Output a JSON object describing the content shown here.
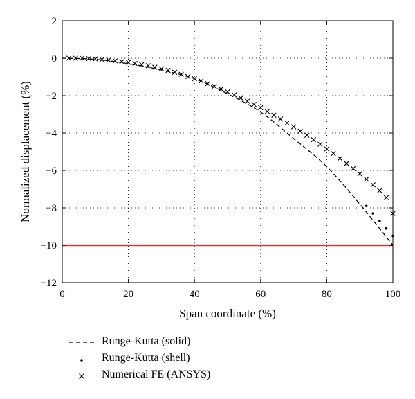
{
  "chart_data": {
    "type": "line",
    "xlabel": "Span coordinate (%)",
    "ylabel": "Normalized displacement (%)",
    "xlim": [
      0,
      100
    ],
    "ylim": [
      -12,
      2
    ],
    "xticks": [
      0,
      20,
      40,
      60,
      80,
      100
    ],
    "yticks": [
      2,
      0,
      -2,
      -4,
      -6,
      -8,
      -10,
      -12
    ],
    "grid": true,
    "grid_style": "dotted",
    "reference_line": {
      "y": -10,
      "color": "#e8312a"
    },
    "legend_position": "below-chart",
    "series": [
      {
        "name": "Runge-Kutta (solid)",
        "style": "dashed-line",
        "x": [
          0,
          10,
          20,
          30,
          40,
          50,
          60,
          70,
          80,
          90,
          100
        ],
        "y": [
          0,
          -0.06,
          -0.29,
          -0.63,
          -1.1,
          -1.9,
          -2.88,
          -4.3,
          -5.8,
          -7.8,
          -10
        ]
      },
      {
        "name": "Runge-Kutta (shell)",
        "style": "dot-markers",
        "x": [
          92,
          94,
          96,
          98,
          100
        ],
        "y": [
          -7.9,
          -8.3,
          -8.7,
          -9.1,
          -9.5
        ]
      },
      {
        "name": "Numerical FE (ANSYS)",
        "style": "x-markers",
        "x": [
          2,
          4,
          6,
          8,
          10,
          12,
          14,
          16,
          18,
          20,
          22,
          24,
          26,
          28,
          30,
          32,
          34,
          36,
          38,
          40,
          42,
          44,
          46,
          48,
          50,
          52,
          54,
          56,
          58,
          60,
          62,
          64,
          66,
          68,
          70,
          72,
          74,
          76,
          78,
          80,
          82,
          84,
          86,
          88,
          90,
          92,
          94,
          96,
          98,
          100
        ],
        "y": [
          0,
          0,
          0,
          -0.02,
          -0.04,
          -0.07,
          -0.1,
          -0.14,
          -0.18,
          -0.22,
          -0.28,
          -0.34,
          -0.4,
          -0.48,
          -0.57,
          -0.65,
          -0.75,
          -0.86,
          -0.98,
          -1.1,
          -1.22,
          -1.36,
          -1.5,
          -1.65,
          -1.8,
          -1.96,
          -2.13,
          -2.3,
          -2.47,
          -2.65,
          -2.85,
          -3.05,
          -3.25,
          -3.46,
          -3.67,
          -3.9,
          -4.12,
          -4.36,
          -4.6,
          -4.85,
          -5.1,
          -5.36,
          -5.63,
          -5.9,
          -6.18,
          -6.47,
          -6.77,
          -7.08,
          -7.45,
          -8.3
        ]
      }
    ]
  }
}
